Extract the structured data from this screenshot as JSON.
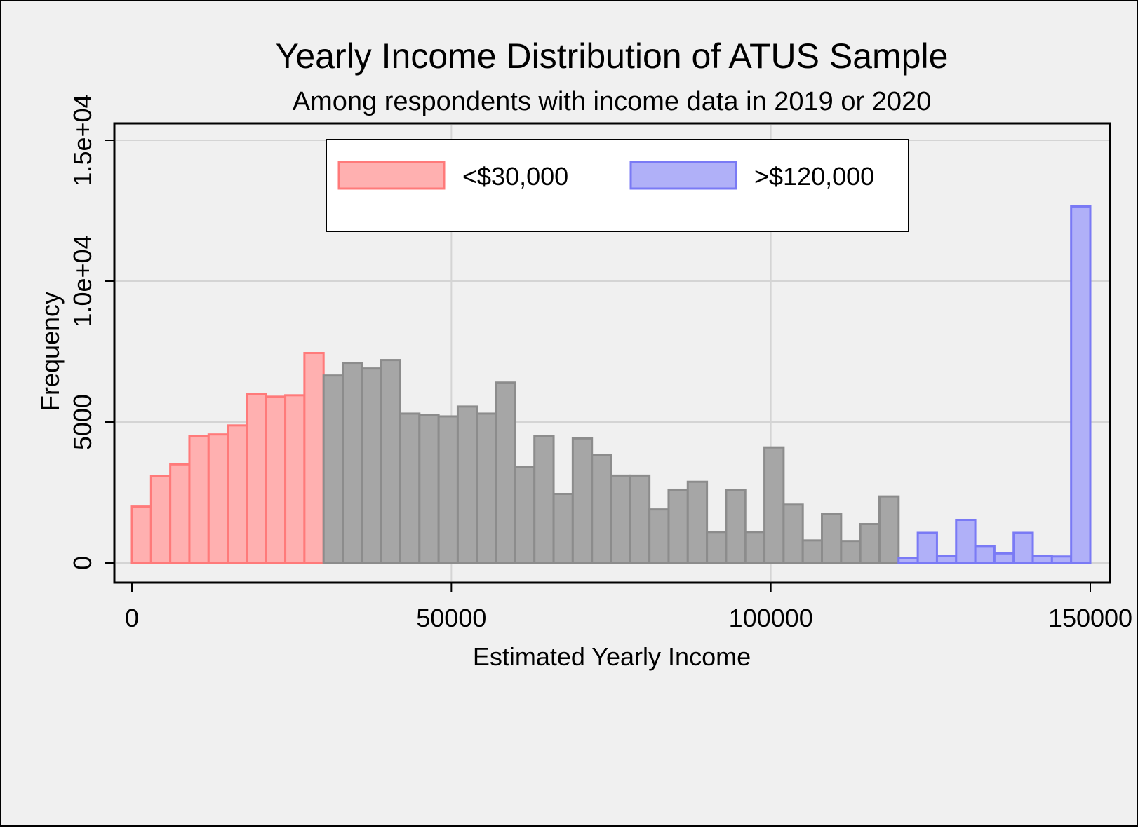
{
  "chart_data": {
    "type": "bar",
    "title": "Yearly Income Distribution of ATUS Sample",
    "subtitle": "Among respondents with income data in 2019 or 2020",
    "xlabel": "Estimated Yearly Income",
    "ylabel": "Frequency",
    "xlim": [
      0,
      150000
    ],
    "ylim": [
      0,
      15000
    ],
    "x_ticks": [
      {
        "value": 0,
        "label": "0"
      },
      {
        "value": 50000,
        "label": "50000"
      },
      {
        "value": 100000,
        "label": "100000"
      },
      {
        "value": 150000,
        "label": "150000"
      }
    ],
    "y_ticks": [
      {
        "value": 0,
        "label": "0"
      },
      {
        "value": 5000,
        "label": "5000"
      },
      {
        "value": 10000,
        "label": "1.0e+04"
      },
      {
        "value": 15000,
        "label": "1.5e+04"
      }
    ],
    "grid": true,
    "legend_position": "top-center",
    "bin_width": 3000,
    "series": [
      {
        "name": "<$30,000",
        "color": "#ff7a7a",
        "fill": "#ffb0b0",
        "bin_starts": [
          0,
          3000,
          6000,
          9000,
          12000,
          15000,
          18000,
          21000,
          24000,
          27000
        ],
        "values": [
          2000,
          3080,
          3500,
          4500,
          4560,
          4880,
          6000,
          5900,
          5950,
          7450
        ]
      },
      {
        "name": "",
        "color": "#8c8c8c",
        "fill": "#a6a6a6",
        "bin_starts": [
          30000,
          33000,
          36000,
          39000,
          42000,
          45000,
          48000,
          51000,
          54000,
          57000,
          60000,
          63000,
          66000,
          69000,
          72000,
          75000,
          78000,
          81000,
          84000,
          87000,
          90000,
          93000,
          96000,
          99000,
          102000,
          105000,
          108000,
          111000,
          114000,
          117000
        ],
        "values": [
          6650,
          7100,
          6900,
          7200,
          5300,
          5250,
          5200,
          5550,
          5300,
          6400,
          3400,
          4500,
          2450,
          4420,
          3820,
          3100,
          3100,
          1900,
          2600,
          2880,
          1100,
          2580,
          1100,
          4100,
          2070,
          800,
          1750,
          780,
          1380,
          2360
        ]
      },
      {
        "name": ">$120,000",
        "color": "#7a7af5",
        "fill": "#b0b0f8",
        "bin_starts": [
          120000,
          123000,
          126000,
          129000,
          132000,
          135000,
          138000,
          141000,
          144000,
          147000
        ],
        "values": [
          180,
          1070,
          250,
          1530,
          600,
          340,
          1070,
          250,
          230,
          12650
        ]
      }
    ]
  }
}
